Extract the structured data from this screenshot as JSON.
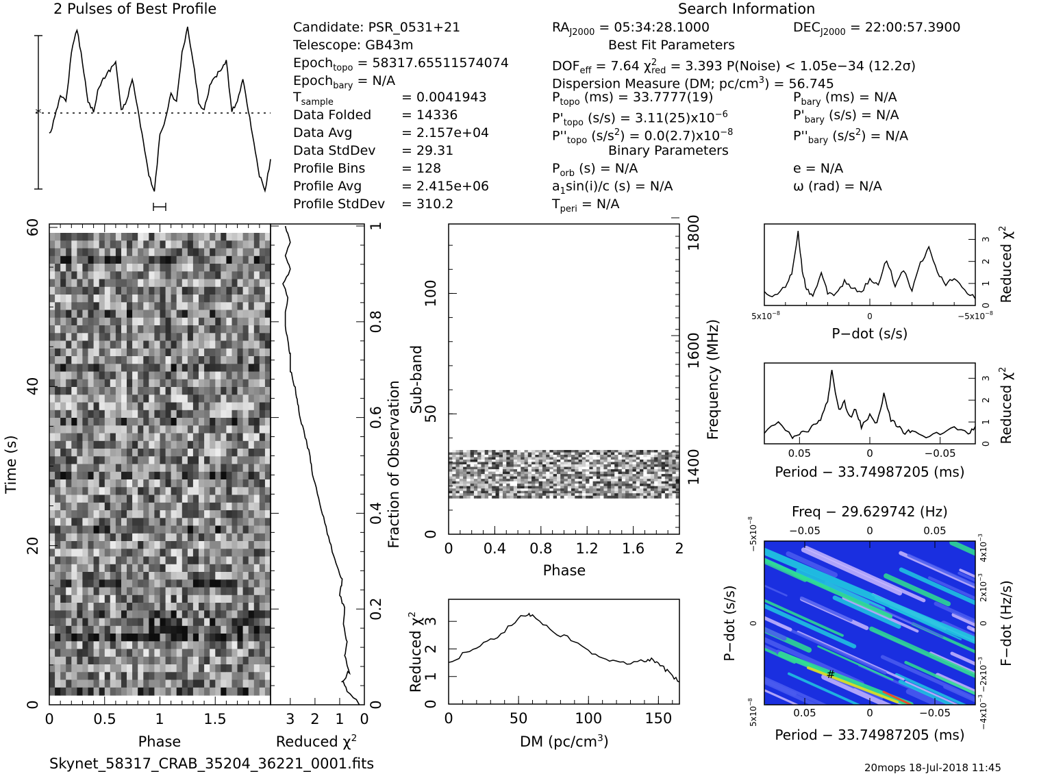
{
  "header": {
    "profile_title": "2 Pulses of Best Profile",
    "search_title": "Search Information",
    "filename": "Skynet_58317_CRAB_35204_36221_0001.fits",
    "footer": "20mops 18-Jul-2018 11:45"
  },
  "info": {
    "candidate": "Candidate:  PSR_0531+21",
    "telescope": "Telescope:  GB43m",
    "epoch_topo": "Epoch",
    "epoch_topo_sub": "topo",
    "epoch_topo_val": " = 58317.65511574074",
    "epoch_bary": "Epoch",
    "epoch_bary_sub": "bary",
    "epoch_bary_val": " = N/A",
    "t_sample": "T",
    "t_sample_sub": "sample",
    "t_sample_val": "=   0.0041943",
    "data_folded": "Data Folded",
    "data_folded_val": "=   14336",
    "data_avg": "Data Avg",
    "data_avg_val": "=   2.157e+04",
    "data_std": "Data StdDev",
    "data_std_val": "=   29.31",
    "prof_bins": "Profile Bins",
    "prof_bins_val": "=   128",
    "prof_avg": "Profile Avg",
    "prof_avg_val": "=   2.415e+06",
    "prof_std": "Profile StdDev",
    "prof_std_val": "=   310.2"
  },
  "search": {
    "ra": "RA",
    "ra_sub": "J2000",
    "ra_val": " = 05:34:28.1000",
    "dec": "DEC",
    "dec_sub": "J2000",
    "dec_val": " = 22:00:57.3900",
    "best_fit": "Best Fit Parameters",
    "dof": "DOF",
    "dof_sub": "eff",
    "dof_val": " = 7.64  ",
    "chi_sym": "χ",
    "chi_sup": "2",
    "chi_sub": "red",
    "chi_val": " = 3.393  P(Noise) < 1.05e−34  (12.2σ)",
    "dm": "Dispersion Measure (DM; pc/cm",
    "dm_sup": "3",
    "dm_val": ") = 56.745",
    "p_topo": "P",
    "p_topo_sub": "topo",
    "p_topo_val": " (ms) =  33.7777(19)",
    "p_bary": "P",
    "p_bary_sub": "bary",
    "p_bary_val": " (ms) = N/A",
    "pd_topo": "P'",
    "pd_topo_sub": "topo",
    "pd_topo_val": " (s/s) =  3.11(25)x10",
    "pd_topo_exp": "−6",
    "pd_bary": "P'",
    "pd_bary_sub": "bary",
    "pd_bary_val": " (s/s) = N/A",
    "pdd_topo": "P''",
    "pdd_topo_sub": "topo",
    "pdd_topo_val": " (s/s",
    "pdd_topo_sup": "2",
    "pdd_topo_val2": ") = 0.0(2.7)x10",
    "pdd_topo_exp": "−8",
    "pdd_bary": "P''",
    "pdd_bary_sub": "bary",
    "pdd_bary_val": " (s/s",
    "pdd_bary_sup": "2",
    "pdd_bary_val2": ") = N/A",
    "binary": "Binary Parameters",
    "porb": "P",
    "porb_sub": "orb",
    "porb_val": " (s) = N/A",
    "ecc": "e = N/A",
    "a1": "a",
    "a1_sub": "1",
    "a1_val": "sin(i)/c (s) = N/A",
    "omega": "ω (rad) = N/A",
    "tperi": "T",
    "tperi_sub": "peri",
    "tperi_val": " = N/A"
  },
  "chart_data": [
    {
      "type": "line",
      "name": "profile",
      "title": "2 Pulses of Best Profile",
      "x": [
        0,
        0.05,
        0.1,
        0.15,
        0.2,
        0.25,
        0.3,
        0.35,
        0.4,
        0.45,
        0.5,
        0.55,
        0.6,
        0.65,
        0.7,
        0.75,
        0.8,
        0.85,
        0.9,
        0.95,
        1.0,
        1.05,
        1.1,
        1.15,
        1.2,
        1.25,
        1.3,
        1.35,
        1.4,
        1.45,
        1.5,
        1.55,
        1.6,
        1.65,
        1.7,
        1.75,
        1.8,
        1.85,
        1.9,
        1.95,
        2.0
      ],
      "values": [
        0.35,
        0.45,
        0.6,
        0.55,
        0.85,
        1.0,
        0.8,
        0.55,
        0.5,
        0.65,
        0.7,
        0.75,
        0.8,
        0.5,
        0.55,
        0.7,
        0.5,
        0.3,
        0.1,
        0.0,
        0.35,
        0.45,
        0.6,
        0.55,
        0.85,
        1.0,
        0.8,
        0.55,
        0.5,
        0.65,
        0.7,
        0.75,
        0.8,
        0.5,
        0.55,
        0.7,
        0.5,
        0.3,
        0.1,
        0.0,
        0.2
      ],
      "ylim": [
        0,
        1
      ]
    },
    {
      "type": "heatmap",
      "name": "time-phase",
      "xlabel": "Phase",
      "ylabel": "Time (s)",
      "xticks": [
        "0",
        "0.5",
        "1",
        "1.5"
      ],
      "yticks": [
        "0",
        "20",
        "40",
        "60"
      ],
      "xlim": [
        0,
        2
      ],
      "ylim": [
        0,
        60
      ]
    },
    {
      "type": "line",
      "name": "chi-vs-time",
      "xlabel": "Reduced χ",
      "xlabel_sup": "2",
      "ylabel": "Fraction of Observation",
      "xticks": [
        "3",
        "2",
        "1",
        "0"
      ],
      "yticks": [
        "0",
        "0.2",
        "0.4",
        "0.6",
        "0.8",
        "1"
      ],
      "x": [
        0.2,
        0.7,
        0.9,
        0.6,
        0.8,
        0.7,
        0.85,
        0.8,
        1.0,
        0.9,
        1.1,
        1.3,
        1.5,
        1.7,
        1.9,
        2.1,
        2.2,
        2.4,
        2.6,
        2.7,
        2.8,
        3.0,
        3.0,
        3.1,
        3.2,
        3.2,
        3.1,
        3.3,
        3.0,
        3.2,
        3.0,
        3.2
      ],
      "y": [
        0,
        0.03,
        0.05,
        0.07,
        0.1,
        0.13,
        0.17,
        0.2,
        0.23,
        0.26,
        0.29,
        0.32,
        0.36,
        0.4,
        0.44,
        0.48,
        0.52,
        0.56,
        0.6,
        0.63,
        0.66,
        0.7,
        0.73,
        0.76,
        0.79,
        0.82,
        0.85,
        0.88,
        0.91,
        0.94,
        0.97,
        1.0
      ],
      "xlim": [
        3.8,
        0
      ],
      "ylim": [
        0,
        1
      ]
    },
    {
      "type": "heatmap",
      "name": "subband-phase",
      "xlabel": "Phase",
      "ylabel": "Sub-band",
      "ylabel2": "Frequency (MHz)",
      "xticks": [
        "0",
        "0.4",
        "0.8",
        "1.2",
        "1.6",
        "2"
      ],
      "yticks": [
        "0",
        "50",
        "100"
      ],
      "yticks2": [
        "1400",
        "1600",
        "1800"
      ],
      "band_range": [
        15,
        35
      ],
      "ylim": [
        0,
        128
      ]
    },
    {
      "type": "line",
      "name": "dm-curve",
      "xlabel": "DM (pc/cm",
      "xlabel_sup": "3",
      "xlabel_end": ")",
      "ylabel": "Reduced χ",
      "ylabel_sup": "2",
      "xticks": [
        "0",
        "50",
        "100",
        "150"
      ],
      "yticks": [
        "0",
        "1",
        "2",
        "3"
      ],
      "x": [
        0,
        10,
        20,
        30,
        40,
        50,
        56.7,
        60,
        70,
        80,
        90,
        100,
        110,
        120,
        130,
        140,
        145,
        150,
        155,
        160,
        165
      ],
      "values": [
        1.5,
        1.8,
        2.05,
        2.3,
        2.65,
        3.1,
        3.3,
        3.2,
        2.8,
        2.5,
        2.3,
        1.95,
        1.65,
        1.55,
        1.5,
        1.55,
        1.6,
        1.45,
        1.25,
        1.0,
        0.8
      ],
      "xlim": [
        0,
        165
      ],
      "ylim": [
        0,
        3.8
      ]
    },
    {
      "type": "line",
      "name": "pdot-curve",
      "xlabel": "P−dot (s/s)",
      "ylabel": "Reduced χ",
      "ylabel_sup": "2",
      "xticks": [
        "5x10",
        "0",
        "−5x10"
      ],
      "xtick_exp": "−8",
      "yticks": [
        "0",
        "1",
        "2",
        "3"
      ],
      "x": [
        -5,
        -4.5,
        -4,
        -3.7,
        -3.4,
        -3.2,
        -3.0,
        -2.7,
        -2.3,
        -2.0,
        -1.6,
        -1.2,
        -0.8,
        -0.4,
        0,
        0.4,
        0.8,
        1.2,
        1.6,
        2.0,
        2.4,
        2.8,
        3.2,
        3.6,
        4.0,
        4.5,
        5
      ],
      "values": [
        0.6,
        0.4,
        0.9,
        1.5,
        3.3,
        1.6,
        0.7,
        0.5,
        1.4,
        0.6,
        0.5,
        1.1,
        0.8,
        0.6,
        1.2,
        1.0,
        2.1,
        0.9,
        1.6,
        0.7,
        1.9,
        2.6,
        1.5,
        0.9,
        1.3,
        0.7,
        0.3
      ],
      "xlim": [
        -5,
        5
      ],
      "ylim": [
        0,
        3.7
      ]
    },
    {
      "type": "line",
      "name": "period-curve",
      "xlabel": "Period − 33.74987205 (ms)",
      "ylabel": "Reduced χ",
      "ylabel_sup": "2",
      "xticks": [
        "0.05",
        "0",
        "−0.05"
      ],
      "yticks": [
        "0",
        "1",
        "2",
        "3"
      ],
      "x": [
        0.075,
        0.065,
        0.055,
        0.05,
        0.045,
        0.04,
        0.035,
        0.03,
        0.027,
        0.022,
        0.018,
        0.014,
        0.01,
        0.006,
        0.0,
        -0.005,
        -0.01,
        -0.015,
        -0.02,
        -0.025,
        -0.03,
        -0.04,
        -0.05,
        -0.06,
        -0.07,
        -0.075
      ],
      "values": [
        0.5,
        1.0,
        0.3,
        0.5,
        0.5,
        0.9,
        1.1,
        2.0,
        3.3,
        1.5,
        1.9,
        1.2,
        1.6,
        0.8,
        1.3,
        0.9,
        2.3,
        1.1,
        0.8,
        0.5,
        0.6,
        0.3,
        0.5,
        0.7,
        0.5,
        0.8
      ],
      "xlim": [
        0.075,
        -0.075
      ],
      "ylim": [
        0,
        3.7
      ]
    },
    {
      "type": "heatmap",
      "name": "pdot-period",
      "title": "Freq − 29.629742 (Hz)",
      "xlabel": "Period − 33.74987205 (ms)",
      "ylabel": "P−dot (s/s)",
      "ylabel2": "F−dot (Hz/s)",
      "xticks": [
        "0.05",
        "0",
        "−0.05"
      ],
      "top_xticks": [
        "−0.05",
        "0",
        "0.05"
      ],
      "yticks": [
        "5x10",
        "0",
        "−5x10"
      ],
      "ytick_exp": "−8",
      "yticks2": [
        "−4x10",
        "−2x10",
        "0",
        "2x10",
        "4x10"
      ],
      "ytick2_exp": "−3",
      "colors": [
        "#1a2fe0",
        "#4b5cf0",
        "#c8b8ff",
        "#20c8e0",
        "#30e090",
        "#e0e020",
        "#ff4020"
      ]
    }
  ]
}
